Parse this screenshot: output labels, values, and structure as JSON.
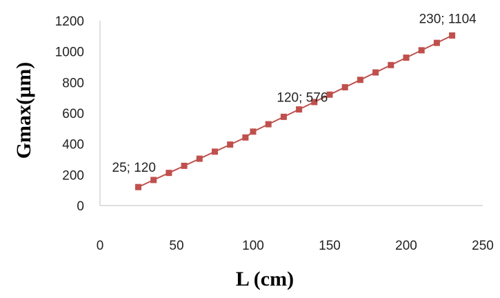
{
  "chart_data": {
    "type": "line",
    "title": "",
    "xlabel": "L (cm)",
    "ylabel": "Gmax(µm)",
    "xlim": [
      0,
      250
    ],
    "ylim": [
      0,
      1200
    ],
    "x_ticks": [
      0,
      50,
      100,
      150,
      200,
      250
    ],
    "y_ticks": [
      0,
      200,
      400,
      600,
      800,
      1000,
      1200
    ],
    "grid": false,
    "legend": "none",
    "series": [
      {
        "color": "#c0504d",
        "marker": "square",
        "x": [
          25,
          35,
          45,
          55,
          65,
          75,
          85,
          95,
          100,
          110,
          120,
          130,
          140,
          150,
          160,
          170,
          180,
          190,
          200,
          210,
          220,
          230
        ],
        "y": [
          120,
          166,
          212,
          258,
          304,
          350,
          396,
          442,
          480,
          528,
          576,
          624,
          672,
          720,
          768,
          816,
          864,
          912,
          960,
          1008,
          1056,
          1104
        ]
      }
    ],
    "annotations": [
      {
        "text": "25; 120",
        "x": 25,
        "y": 120
      },
      {
        "text": "120; 576",
        "x": 120,
        "y": 576
      },
      {
        "text": "230; 1104",
        "x": 230,
        "y": 1104
      }
    ]
  }
}
